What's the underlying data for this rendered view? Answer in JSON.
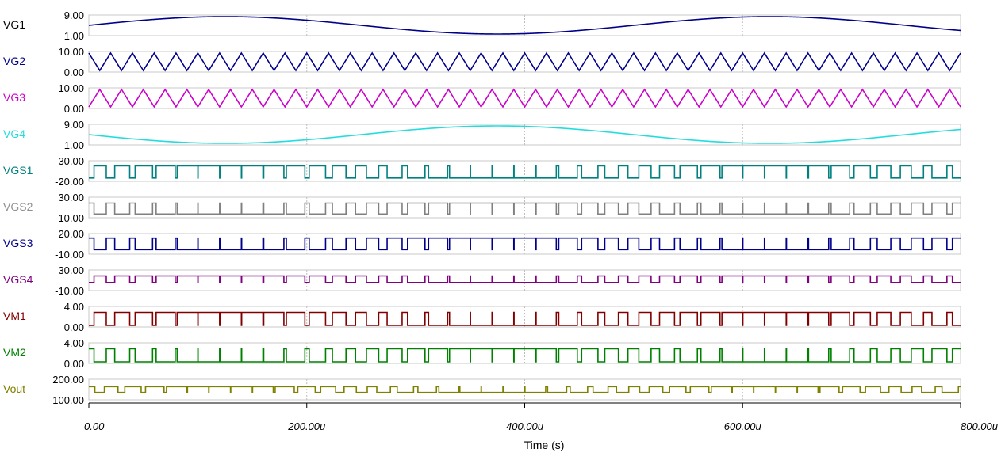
{
  "chart_data": {
    "type": "line",
    "xlabel": "Time (s)",
    "xlim": [
      0,
      800
    ],
    "x_unit_suffix": "u",
    "x_ticks": [
      {
        "value": 0,
        "label": "0.00"
      },
      {
        "value": 200,
        "label": "200.00u"
      },
      {
        "value": 400,
        "label": "400.00u"
      },
      {
        "value": 600,
        "label": "600.00u"
      },
      {
        "value": 800,
        "label": "800.00u"
      }
    ],
    "grid": "dashed vertical at 200u, 400u, 600u",
    "series": [
      {
        "name": "VG1",
        "color": "#000000",
        "line_color": "#00008B",
        "ymin_label": "1.00",
        "ymax_label": "9.00",
        "ylim": [
          1,
          9
        ],
        "kind": "sine",
        "amplitude": 4,
        "offset": 5,
        "period": 500,
        "phase_deg": 0
      },
      {
        "name": "VG2",
        "color": "#00008B",
        "line_color": "#00008B",
        "ymin_label": "0.00",
        "ymax_label": "10.00",
        "ylim": [
          0,
          10
        ],
        "kind": "triangle",
        "period": 20,
        "start_high": true
      },
      {
        "name": "VG3",
        "color": "#CC00CC",
        "line_color": "#CC00CC",
        "ymin_label": "0.00",
        "ymax_label": "10.00",
        "ylim": [
          0,
          10
        ],
        "kind": "triangle",
        "period": 20,
        "start_high": false
      },
      {
        "name": "VG4",
        "color": "#22DDDD",
        "line_color": "#22DDDD",
        "ymin_label": "1.00",
        "ymax_label": "9.00",
        "ylim": [
          1,
          9
        ],
        "kind": "sine",
        "amplitude": 4,
        "offset": 5,
        "period": 500,
        "phase_deg": 180
      },
      {
        "name": "VGS1",
        "color": "#008080",
        "line_color": "#008080",
        "ymin_label": "-20.00",
        "ymax_label": "30.00",
        "ylim": [
          -20,
          30
        ],
        "kind": "pwm",
        "high": 20,
        "low": -15,
        "ref": "VG1",
        "carrier": "VG2"
      },
      {
        "name": "VGS2",
        "color": "#909090",
        "line_color": "#808080",
        "ymin_label": "-10.00",
        "ymax_label": "30.00",
        "ylim": [
          -10,
          30
        ],
        "kind": "pwm",
        "high": 20,
        "low": -5,
        "ref": "VG1",
        "carrier": "VG2",
        "invert": true
      },
      {
        "name": "VGS3",
        "color": "#00008B",
        "line_color": "#00008B",
        "ymin_label": "-10.00",
        "ymax_label": "20.00",
        "ylim": [
          -10,
          20
        ],
        "kind": "pwm",
        "high": 15,
        "low": -5,
        "ref": "VG4",
        "carrier": "VG3"
      },
      {
        "name": "VGS4",
        "color": "#800080",
        "line_color": "#800080",
        "ymin_label": "-10.00",
        "ymax_label": "30.00",
        "ylim": [
          -10,
          30
        ],
        "kind": "pwm",
        "high": 20,
        "low": 5,
        "ref": "VG4",
        "carrier": "VG3",
        "invert": true
      },
      {
        "name": "VM1",
        "color": "#800000",
        "line_color": "#800000",
        "ymin_label": "0.00",
        "ymax_label": "4.00",
        "ylim": [
          0,
          4
        ],
        "kind": "pwm",
        "high": 3,
        "low": 0,
        "ref": "VG1",
        "carrier": "VG2"
      },
      {
        "name": "VM2",
        "color": "#008000",
        "line_color": "#008000",
        "ymin_label": "0.00",
        "ymax_label": "4.00",
        "ylim": [
          0,
          4
        ],
        "kind": "pwm",
        "high": 3,
        "low": 0,
        "ref": "VG4",
        "carrier": "VG3"
      },
      {
        "name": "Vout",
        "color": "#808000",
        "line_color": "#808000",
        "ymin_label": "-100.00",
        "ymax_label": "200.00",
        "ylim": [
          -100,
          200
        ],
        "kind": "pwm",
        "high": 100,
        "low": 0,
        "ref": "VG1",
        "carrier": "VG3"
      }
    ]
  }
}
